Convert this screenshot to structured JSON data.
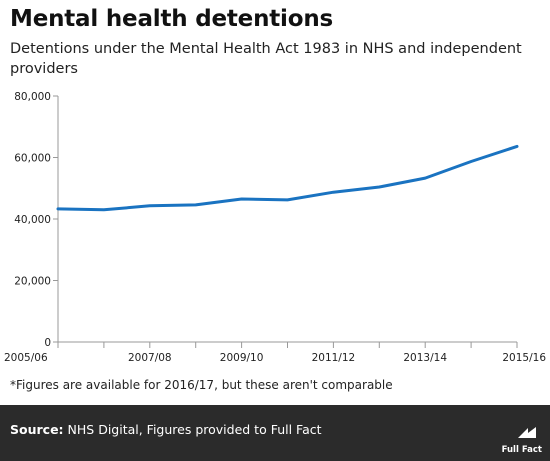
{
  "title": "Mental health detentions",
  "subtitle": "Detentions under the Mental Health Act 1983 in NHS and independent providers",
  "footnote": "*Figures are available for 2016/17, but these aren't comparable",
  "footer": {
    "source_label": "Source:",
    "source_text": "NHS Digital, Figures provided to Full Fact",
    "logo_text": "Full Fact"
  },
  "colors": {
    "line": "#1a73c1",
    "axis": "#999999",
    "footer_bg": "#2b2b2b"
  },
  "chart_data": {
    "type": "line",
    "title": "",
    "xlabel": "",
    "ylabel": "",
    "x": [
      "2005/06",
      "2006/07",
      "2007/08",
      "2008/09",
      "2009/10",
      "2010/11",
      "2011/12",
      "2012/13",
      "2013/14",
      "2014/15",
      "2015/16"
    ],
    "series": [
      {
        "values": [
          43300,
          43000,
          44300,
          44600,
          46500,
          46200,
          48700,
          50400,
          53300,
          58700,
          63600
        ]
      }
    ],
    "x_tick_labels": [
      "2005/06",
      "2007/08",
      "2009/10",
      "2011/12",
      "2013/14",
      "2015/16"
    ],
    "y_ticks": [
      0,
      20000,
      40000,
      60000,
      80000
    ],
    "y_tick_labels": [
      "0",
      "20,000",
      "40,000",
      "60,000",
      "80,000"
    ],
    "ylim": [
      0,
      80000
    ],
    "grid": false,
    "legend": "none"
  }
}
